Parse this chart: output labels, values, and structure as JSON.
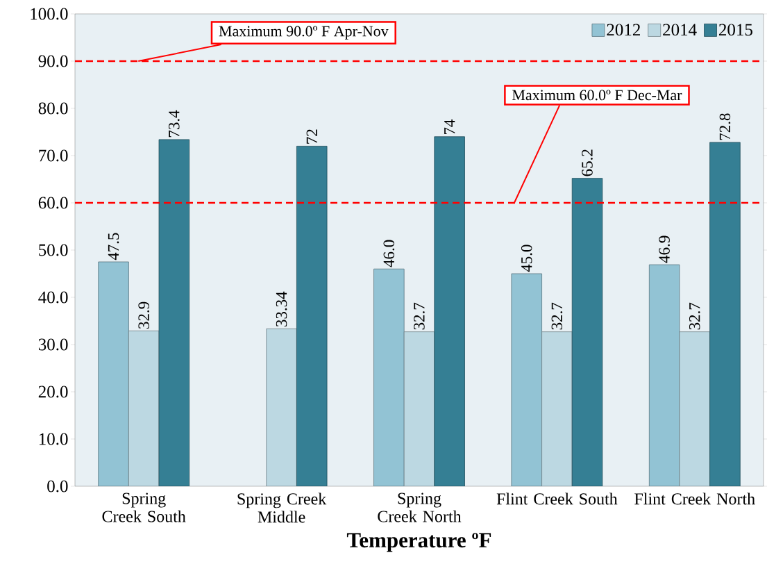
{
  "chart_data": {
    "type": "bar",
    "xlabel": "Temperature ºF",
    "categories": [
      "Spring Creek South",
      "Spring Creek Middle",
      "Spring Creek North",
      "Flint Creek South",
      "Flint Creek North"
    ],
    "series": [
      {
        "name": "2012",
        "color": "#92c3d4",
        "values": [
          47.5,
          null,
          46.0,
          45.0,
          46.9
        ],
        "value_labels": [
          "47.5",
          null,
          "46.0",
          "45.0",
          "46.9"
        ]
      },
      {
        "name": "2014",
        "color": "#bcd8e2",
        "values": [
          32.9,
          33.34,
          32.7,
          32.7,
          32.7
        ],
        "value_labels": [
          "32.9",
          "33.34",
          "32.7",
          "32.7",
          "32.7"
        ]
      },
      {
        "name": "2015",
        "color": "#357f94",
        "values": [
          73.4,
          72,
          74,
          65.2,
          72.8
        ],
        "value_labels": [
          "73.4",
          "72",
          "74",
          "65.2",
          "72.8"
        ]
      }
    ],
    "ylim": [
      0,
      100
    ],
    "yticks": [
      {
        "value": 0,
        "label": "0.0"
      },
      {
        "value": 10,
        "label": "10.0"
      },
      {
        "value": 20,
        "label": "20.0"
      },
      {
        "value": 30,
        "label": "30.0"
      },
      {
        "value": 40,
        "label": "40.0"
      },
      {
        "value": 50,
        "label": "50.0"
      },
      {
        "value": 60,
        "label": "60.0"
      },
      {
        "value": 70,
        "label": "70.0"
      },
      {
        "value": 80,
        "label": "80.0"
      },
      {
        "value": 90,
        "label": "90.0"
      },
      {
        "value": 100,
        "label": "100.0"
      }
    ],
    "ref_lines": [
      {
        "axis": "y",
        "value": 90,
        "label": "Maximum 90.0º F Apr-Nov",
        "color": "#ff0000",
        "line_style": "dashed"
      },
      {
        "axis": "y",
        "value": 60,
        "label": "Maximum 60.0º F Dec-Mar",
        "color": "#ff0000",
        "line_style": "dashed"
      }
    ],
    "legend": "top right",
    "grid": false
  }
}
